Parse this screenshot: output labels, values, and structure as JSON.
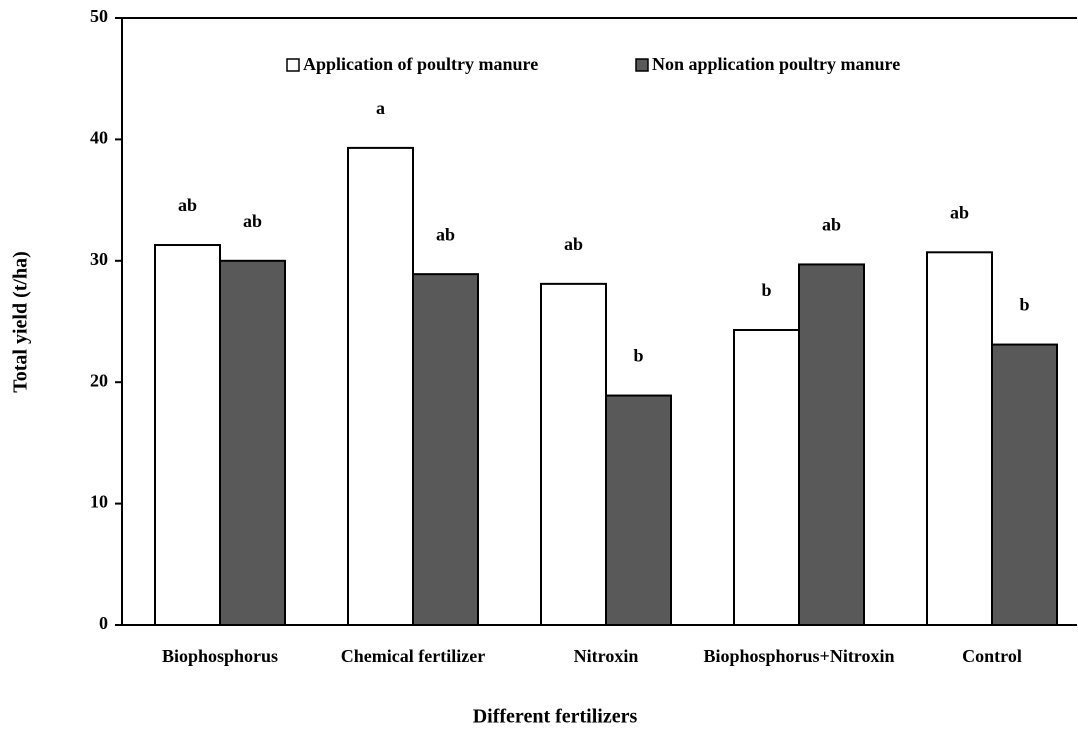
{
  "chart_data": {
    "type": "bar",
    "x_label": "Different fertilizers",
    "y_label": "Total yield (t/ha)",
    "categories": [
      "Biophosphorus",
      "Chemical fertilizer",
      "Nitroxin",
      "Biophosphorus+Nitroxin",
      "Control"
    ],
    "series": [
      {
        "name": "Application of poultry manure",
        "color": "#ffffff",
        "values": [
          31.3,
          39.3,
          28.1,
          24.3,
          30.7
        ],
        "letters": [
          "ab",
          "a",
          "ab",
          "b",
          "ab"
        ]
      },
      {
        "name": "Non application poultry manure",
        "color": "#595959",
        "values": [
          30.0,
          28.9,
          18.9,
          29.7,
          23.1
        ],
        "letters": [
          "ab",
          "ab",
          "b",
          "ab",
          "b"
        ]
      }
    ],
    "ylim": [
      0,
      50
    ],
    "yticks": [
      0,
      10,
      20,
      30,
      40,
      50
    ],
    "legend": "top"
  }
}
